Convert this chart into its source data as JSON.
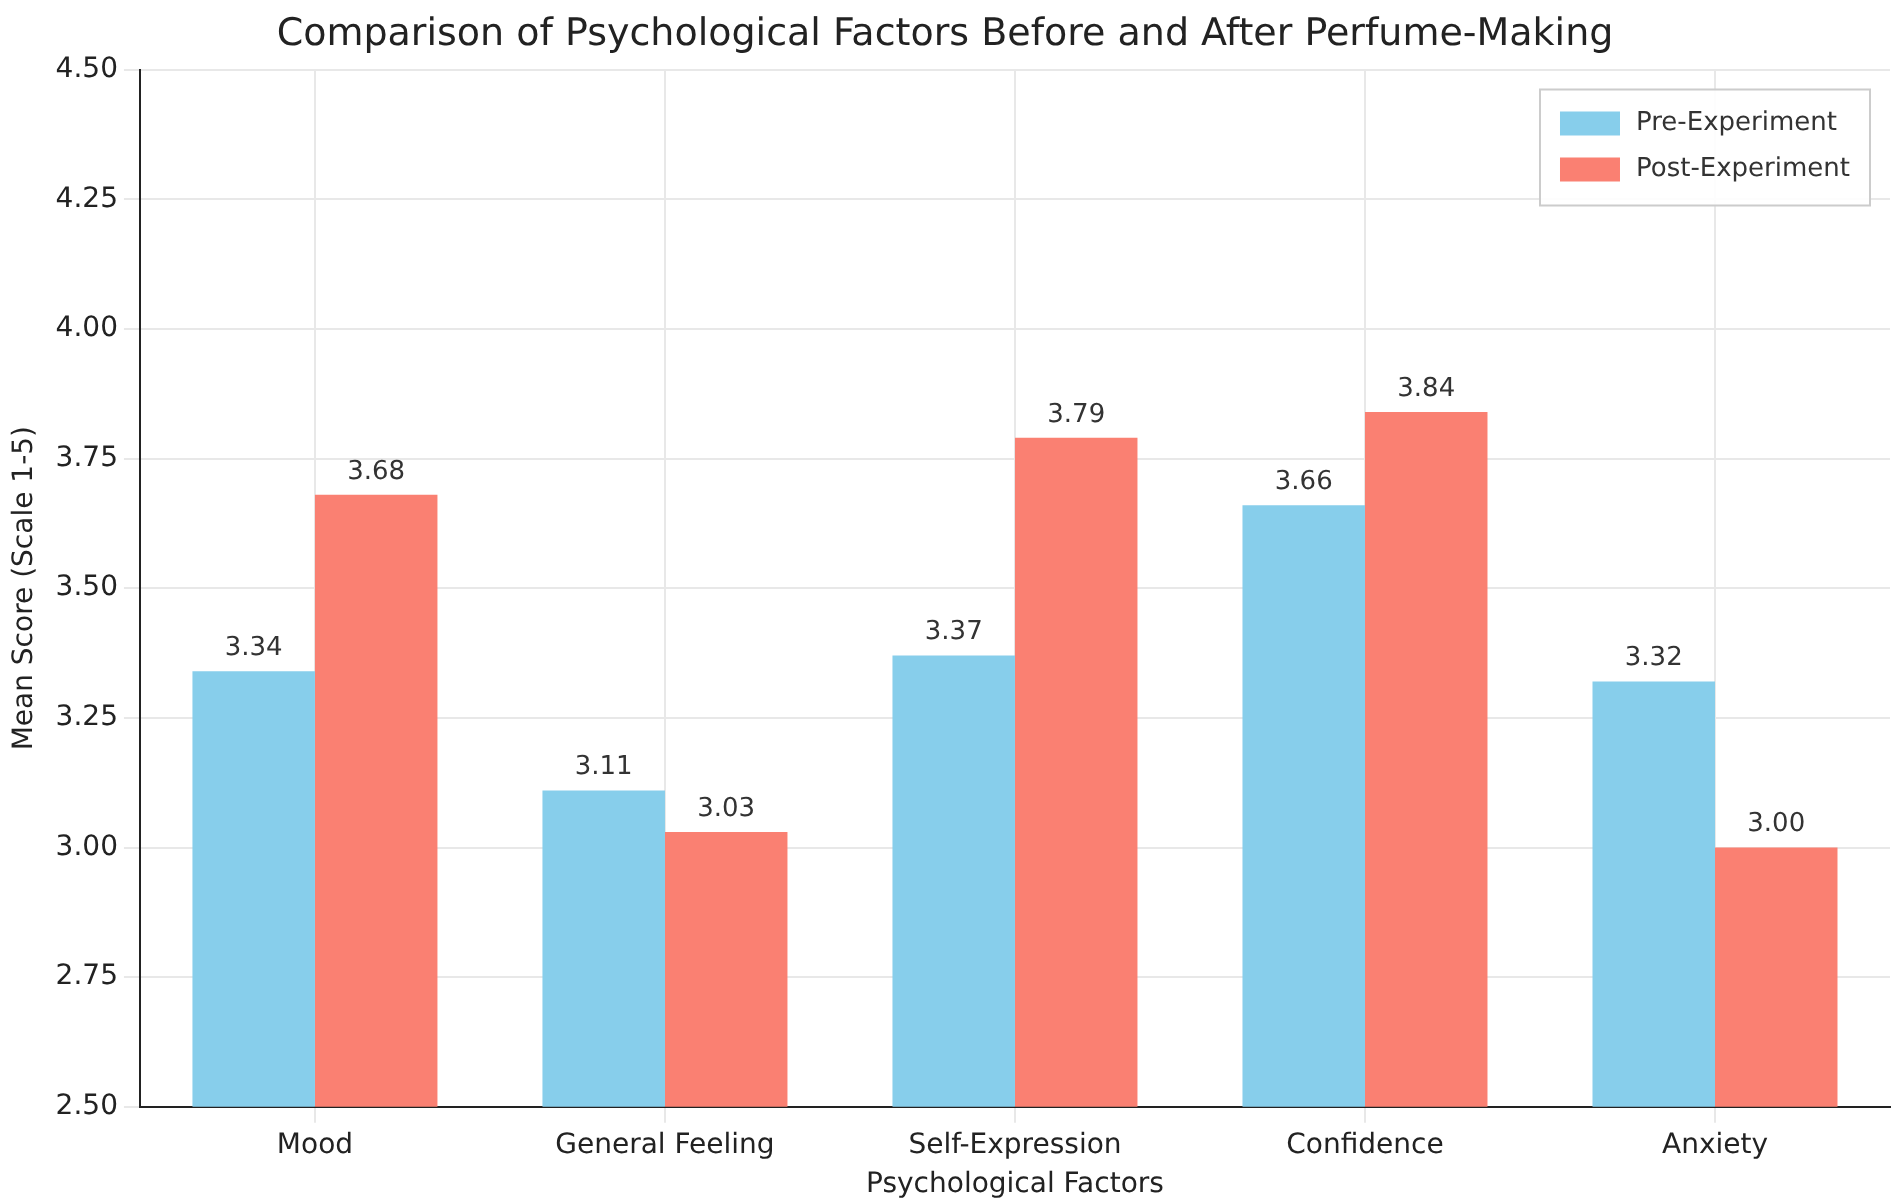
{
  "chart_data": {
    "type": "bar",
    "title": "Comparison of Psychological Factors Before and After Perfume-Making",
    "xlabel": "Psychological Factors",
    "ylabel": "Mean Score (Scale 1-5)",
    "categories": [
      "Mood",
      "General Feeling",
      "Self-Expression",
      "Confidence",
      "Anxiety"
    ],
    "series": [
      {
        "name": "Pre-Experiment",
        "color": "#87ceeb",
        "values": [
          3.34,
          3.11,
          3.37,
          3.66,
          3.32
        ],
        "value_labels": [
          "3.34",
          "3.11",
          "3.37",
          "3.66",
          "3.32"
        ]
      },
      {
        "name": "Post-Experiment",
        "color": "#fa8072",
        "values": [
          3.68,
          3.03,
          3.79,
          3.84,
          3.0
        ],
        "value_labels": [
          "3.68",
          "3.03",
          "3.79",
          "3.84",
          "3.00"
        ]
      }
    ],
    "ylim": [
      2.5,
      4.5
    ],
    "yticks": [
      {
        "value": 2.5,
        "label": "2.50"
      },
      {
        "value": 2.75,
        "label": "2.75"
      },
      {
        "value": 3,
        "label": "3.00"
      },
      {
        "value": 3.25,
        "label": "3.25"
      },
      {
        "value": 3.5,
        "label": "3.50"
      },
      {
        "value": 3.75,
        "label": "3.75"
      },
      {
        "value": 4,
        "label": "4.00"
      },
      {
        "value": 4.25,
        "label": "4.25"
      },
      {
        "value": 4.5,
        "label": "4.50"
      }
    ],
    "grid": true,
    "legend": "top right"
  }
}
